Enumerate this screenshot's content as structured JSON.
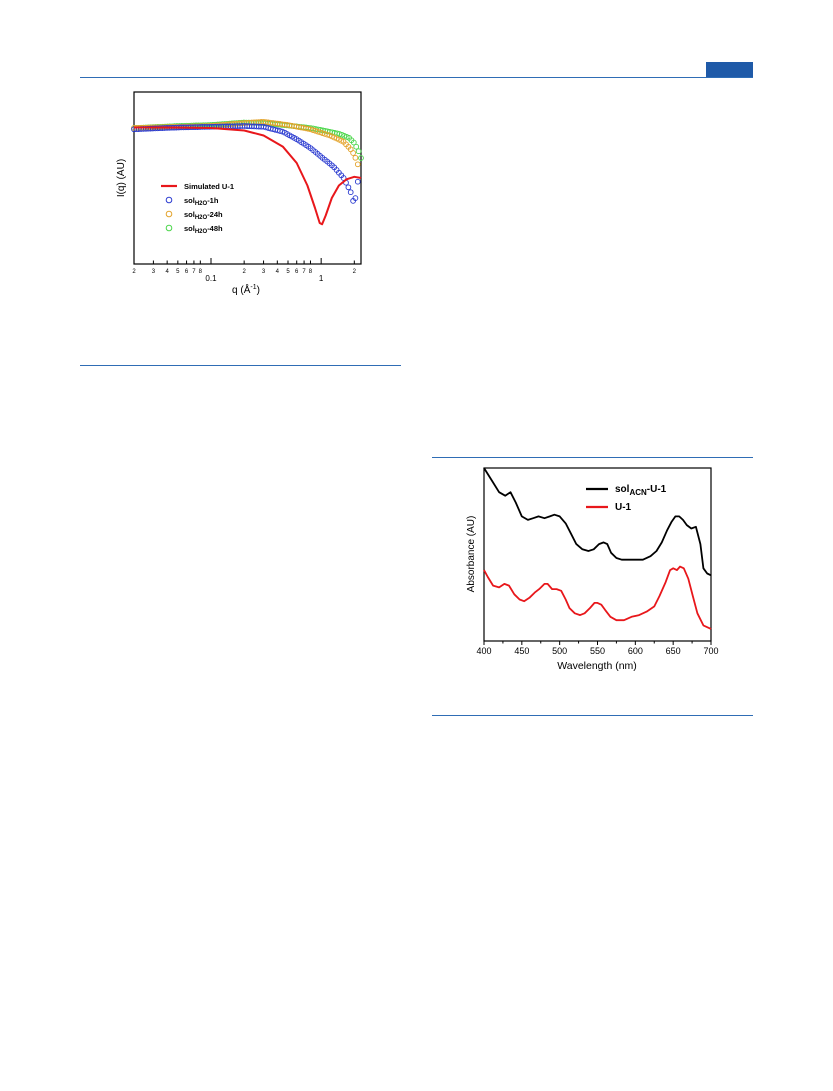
{
  "colors": {
    "rule": "#2f6db5",
    "header_tab": "#1f5aa8",
    "sim": "#e8171b",
    "h1": "#2b3bd0",
    "h24": "#e3a32b",
    "h48": "#4ad64a",
    "acn": "#000000",
    "u1": "#e8171b"
  },
  "chart_data": [
    {
      "type": "line",
      "xscale": "log",
      "xlim": [
        0.02,
        2.3
      ],
      "ylabel": "I(q) (AU)",
      "xlabel": "q (Å",
      "xlabel_exp": "-1",
      "xlabel_close": ")",
      "ticks": {
        "major": [
          "0.1",
          "1"
        ],
        "minor_digits": [
          "2",
          "3",
          "4",
          "5",
          "6",
          "7",
          "8",
          "2",
          "3",
          "4",
          "5",
          "6",
          "7",
          "8",
          "2"
        ]
      },
      "legend": {
        "placement": "middle-left",
        "entries": [
          {
            "main": "Simulated U-1",
            "sub": "",
            "suffix": ""
          },
          {
            "main": "sol",
            "sub": "H2O",
            "suffix": "-1h"
          },
          {
            "main": "sol",
            "sub": "H2O",
            "suffix": "-24h"
          },
          {
            "main": "sol",
            "sub": "H2O",
            "suffix": "-48h"
          }
        ]
      },
      "series": [
        {
          "name": "Simulated U-1",
          "style": "line",
          "color": "#e8171b",
          "x": [
            0.02,
            0.05,
            0.1,
            0.2,
            0.3,
            0.45,
            0.6,
            0.75,
            0.88,
            0.97,
            1.02,
            1.1,
            1.25,
            1.45,
            1.7,
            2.0,
            2.3
          ],
          "y": [
            0.02,
            0.02,
            0.0,
            -0.1,
            -0.3,
            -0.75,
            -1.4,
            -2.3,
            -3.2,
            -3.8,
            -3.85,
            -3.5,
            -2.8,
            -2.3,
            -2.05,
            -1.95,
            -2.0
          ]
        },
        {
          "name": "solH2O-1h",
          "style": "marker",
          "color": "#2b3bd0",
          "x": [
            0.02,
            0.05,
            0.1,
            0.2,
            0.3,
            0.45,
            0.6,
            0.8,
            1.0,
            1.3,
            1.6,
            1.85,
            2.0,
            2.08,
            2.15
          ],
          "y": [
            -0.05,
            0.02,
            0.05,
            0.08,
            0.05,
            -0.15,
            -0.45,
            -0.8,
            -1.15,
            -1.55,
            -2.0,
            -2.55,
            -3.1,
            -2.6,
            -2.15
          ]
        },
        {
          "name": "solH2O-24h",
          "style": "marker",
          "color": "#e3a32b",
          "x": [
            0.02,
            0.05,
            0.1,
            0.2,
            0.3,
            0.5,
            0.8,
            1.2,
            1.6,
            1.9,
            2.05,
            2.15
          ],
          "y": [
            0.0,
            0.05,
            0.08,
            0.2,
            0.25,
            0.12,
            -0.05,
            -0.3,
            -0.55,
            -0.9,
            -1.2,
            -1.45
          ]
        },
        {
          "name": "solH2O-48h",
          "style": "marker",
          "color": "#4ad64a",
          "x": [
            0.02,
            0.05,
            0.1,
            0.2,
            0.3,
            0.5,
            0.8,
            1.2,
            1.5,
            1.8,
            2.0,
            2.2,
            2.3
          ],
          "y": [
            0.0,
            0.08,
            0.12,
            0.22,
            0.2,
            0.1,
            0.0,
            -0.15,
            -0.25,
            -0.4,
            -0.6,
            -0.95,
            -1.2
          ]
        }
      ]
    },
    {
      "type": "line",
      "xlim": [
        400,
        700
      ],
      "xlabel": "Wavelength (nm)",
      "ylabel": "Absorbance (AU)",
      "xticks": [
        400,
        450,
        500,
        550,
        600,
        650,
        700
      ],
      "legend": {
        "placement": "top-right",
        "entries": [
          {
            "main": "sol",
            "sub": "ACN",
            "suffix": "-U-1"
          },
          {
            "main": "U-1",
            "sub": "",
            "suffix": ""
          }
        ]
      },
      "series": [
        {
          "name": "solACN-U-1",
          "color": "#000000",
          "x": [
            400,
            410,
            420,
            428,
            435,
            442,
            450,
            458,
            465,
            472,
            480,
            487,
            493,
            500,
            508,
            515,
            522,
            530,
            538,
            545,
            552,
            558,
            563,
            568,
            575,
            582,
            590,
            600,
            610,
            620,
            628,
            635,
            642,
            648,
            653,
            658,
            663,
            668,
            674,
            680,
            686,
            690,
            695,
            700
          ],
          "y": [
            1.0,
            0.93,
            0.86,
            0.84,
            0.86,
            0.8,
            0.72,
            0.7,
            0.71,
            0.72,
            0.71,
            0.72,
            0.73,
            0.72,
            0.68,
            0.62,
            0.56,
            0.53,
            0.52,
            0.53,
            0.56,
            0.57,
            0.56,
            0.51,
            0.48,
            0.47,
            0.47,
            0.47,
            0.47,
            0.49,
            0.52,
            0.57,
            0.64,
            0.69,
            0.72,
            0.72,
            0.7,
            0.67,
            0.65,
            0.66,
            0.56,
            0.42,
            0.39,
            0.38
          ]
        },
        {
          "name": "U-1",
          "color": "#e8171b",
          "x": [
            400,
            405,
            412,
            420,
            427,
            433,
            440,
            447,
            453,
            460,
            467,
            473,
            480,
            484,
            490,
            496,
            502,
            508,
            513,
            520,
            527,
            533,
            540,
            546,
            550,
            555,
            560,
            567,
            575,
            585,
            595,
            605,
            615,
            625,
            632,
            640,
            646,
            650,
            655,
            659,
            664,
            670,
            676,
            682,
            690,
            700
          ],
          "y": [
            0.41,
            0.37,
            0.32,
            0.31,
            0.33,
            0.32,
            0.27,
            0.24,
            0.23,
            0.25,
            0.28,
            0.3,
            0.33,
            0.33,
            0.3,
            0.3,
            0.29,
            0.24,
            0.19,
            0.16,
            0.15,
            0.16,
            0.19,
            0.22,
            0.22,
            0.21,
            0.18,
            0.14,
            0.12,
            0.12,
            0.14,
            0.15,
            0.17,
            0.2,
            0.26,
            0.34,
            0.41,
            0.42,
            0.41,
            0.43,
            0.42,
            0.36,
            0.26,
            0.16,
            0.09,
            0.07
          ]
        }
      ]
    }
  ]
}
